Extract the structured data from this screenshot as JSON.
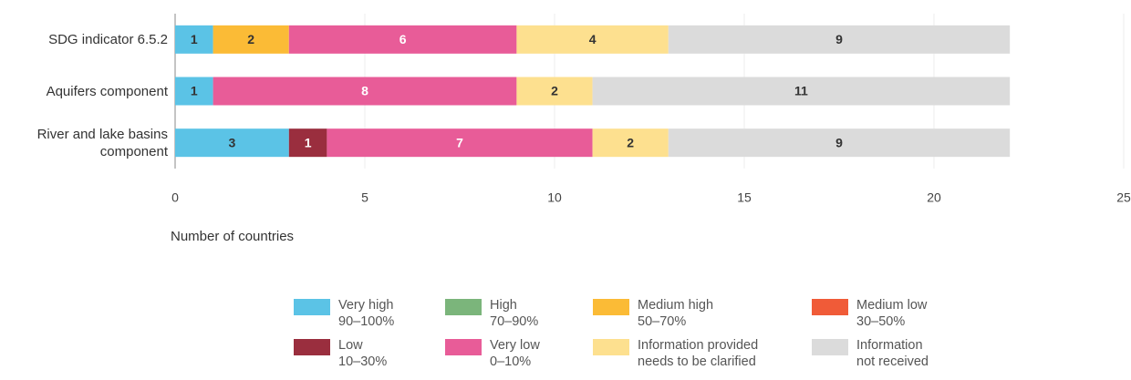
{
  "chart_data": {
    "type": "stacked_barh",
    "categories": [
      "SDG indicator 6.5.2",
      "Aquifers component",
      "River and lake basins\ncomponent"
    ],
    "series": [
      {
        "name": "Very high\n90–100%",
        "color": "#5bc3e6",
        "values": [
          1,
          1,
          3
        ]
      },
      {
        "name": "High\n70–90%",
        "color": "#7bb57b",
        "values": [
          0,
          0,
          0
        ]
      },
      {
        "name": "Medium high\n50–70%",
        "color": "#fbbb36",
        "values": [
          2,
          0,
          0
        ]
      },
      {
        "name": "Medium low\n30–50%",
        "color": "#f05b38",
        "values": [
          0,
          0,
          0
        ]
      },
      {
        "name": "Low\n10–30%",
        "color": "#9a2e3e",
        "values": [
          0,
          0,
          1
        ]
      },
      {
        "name": "Very low\n0–10%",
        "color": "#e85c98",
        "values": [
          6,
          8,
          7
        ]
      },
      {
        "name": "Information provided\nneeds to be clarified",
        "color": "#fde08f",
        "values": [
          4,
          2,
          2
        ]
      },
      {
        "name": "Information\nnot received",
        "color": "#dbdbdb",
        "values": [
          9,
          11,
          9
        ]
      }
    ],
    "xlabel": "Number of countries",
    "xlim": [
      0,
      25
    ],
    "xticks": [
      0,
      5,
      10,
      15,
      20,
      25
    ],
    "grid": true
  }
}
